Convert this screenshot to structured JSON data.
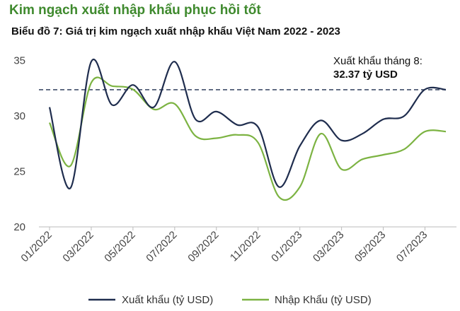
{
  "header": {
    "headline": "Kim ngạch xuất nhập khẩu phục hồi tốt",
    "chart_title": "Biểu đồ 7: Giá trị kim ngạch xuất nhập khẩu Việt Nam 2022 - 2023"
  },
  "annotation": {
    "label": "Xuất khẩu tháng 8:",
    "value": "32.37 tỷ USD"
  },
  "colors": {
    "export": "#1f2d4e",
    "import": "#7cb342",
    "reference": "#1f2d4e",
    "headline": "#3f8a2e"
  },
  "chart_data": {
    "type": "line",
    "title": "Biểu đồ 7: Giá trị kim ngạch xuất nhập khẩu Việt Nam 2022 - 2023",
    "xlabel": "",
    "ylabel": "",
    "x": [
      "01/2022",
      "02/2022",
      "03/2022",
      "04/2022",
      "05/2022",
      "06/2022",
      "07/2022",
      "08/2022",
      "09/2022",
      "10/2022",
      "11/2022",
      "12/2022",
      "01/2023",
      "02/2023",
      "03/2023",
      "04/2023",
      "05/2023",
      "06/2023",
      "07/2023",
      "08/2023"
    ],
    "x_tick_labels": [
      "01/2022",
      "03/2022",
      "05/2022",
      "07/2022",
      "09/2022",
      "11/2022",
      "01/2023",
      "03/2023",
      "05/2023",
      "07/2023"
    ],
    "ylim": [
      20,
      36
    ],
    "y_ticks": [
      20,
      25,
      30,
      35
    ],
    "grid": false,
    "legend_position": "bottom",
    "reference_line": {
      "value": 32.37,
      "style": "dashed"
    },
    "series": [
      {
        "name": "Xuất khẩu (tỷ USD)",
        "color": "#1f2d4e",
        "values": [
          30.8,
          23.5,
          34.9,
          31.0,
          32.8,
          30.8,
          34.9,
          29.7,
          30.4,
          29.2,
          29.0,
          23.6,
          27.3,
          29.6,
          27.8,
          28.4,
          29.7,
          30.0,
          32.4,
          32.37
        ]
      },
      {
        "name": "Nhập Khẩu (tỷ USD)",
        "color": "#7cb342",
        "values": [
          29.4,
          25.5,
          33.0,
          32.7,
          32.4,
          30.6,
          31.1,
          28.2,
          28.0,
          28.3,
          27.6,
          22.7,
          23.6,
          28.4,
          25.2,
          26.1,
          26.5,
          27.0,
          28.6,
          28.6
        ]
      }
    ]
  }
}
